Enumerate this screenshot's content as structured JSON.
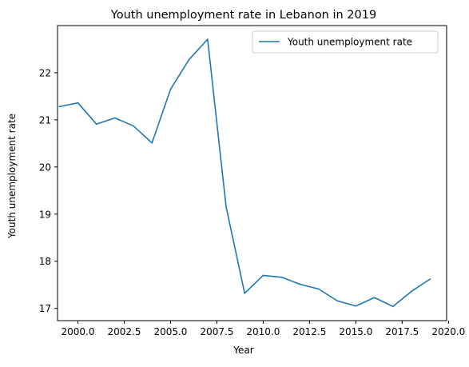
{
  "chart_data": {
    "type": "line",
    "title": "Youth unemployment rate in Lebanon in 2019",
    "xlabel": "Year",
    "ylabel": "Youth unemployment rate",
    "xlim": [
      1998.9,
      2019.9
    ],
    "ylim": [
      16.74,
      23.0
    ],
    "xticks": [
      2000.0,
      2002.5,
      2005.0,
      2007.5,
      2010.0,
      2012.5,
      2015.0,
      2017.5,
      2020.0
    ],
    "xtick_labels": [
      "2000.0",
      "2002.5",
      "2005.0",
      "2007.5",
      "2010.0",
      "2012.5",
      "2015.0",
      "2017.5",
      "2020.0"
    ],
    "yticks": [
      17,
      18,
      19,
      20,
      21,
      22
    ],
    "ytick_labels": [
      "17",
      "18",
      "19",
      "20",
      "21",
      "22"
    ],
    "grid": false,
    "legend_position": "top-right",
    "series": [
      {
        "name": "Youth unemployment rate",
        "color": "#1f77b4",
        "x": [
          1999,
          2000,
          2001,
          2002,
          2003,
          2004,
          2005,
          2006,
          2007,
          2008,
          2009,
          2010,
          2011,
          2012,
          2013,
          2014,
          2015,
          2016,
          2017,
          2018,
          2019
        ],
        "y": [
          21.28,
          21.36,
          20.91,
          21.04,
          20.87,
          20.51,
          21.65,
          22.28,
          22.71,
          19.15,
          17.32,
          17.7,
          17.66,
          17.51,
          17.41,
          17.16,
          17.05,
          17.23,
          17.04,
          17.36,
          17.62
        ]
      }
    ]
  }
}
